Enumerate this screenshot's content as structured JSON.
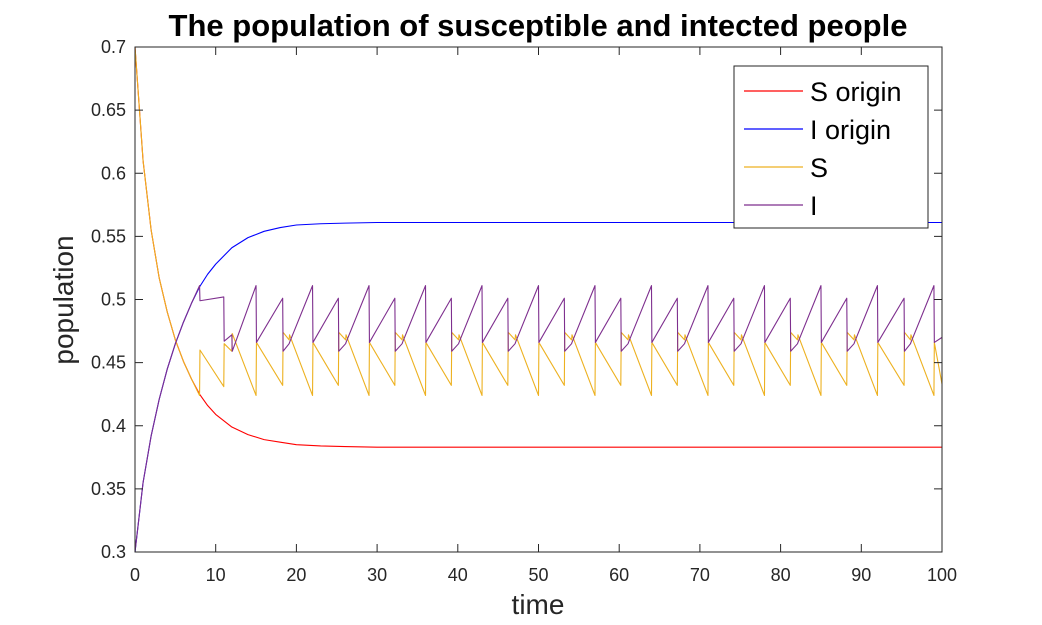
{
  "chart_data": {
    "type": "line",
    "title": "The population of susceptible and intected people",
    "xlabel": "time",
    "ylabel": "population",
    "xlim": [
      0,
      100
    ],
    "ylim": [
      0.3,
      0.7
    ],
    "xticks": [
      0,
      10,
      20,
      30,
      40,
      50,
      60,
      70,
      80,
      90,
      100
    ],
    "xtick_labels": [
      "0",
      "10",
      "20",
      "30",
      "40",
      "50",
      "60",
      "70",
      "80",
      "90",
      "100"
    ],
    "yticks": [
      0.3,
      0.35,
      0.4,
      0.45,
      0.5,
      0.55,
      0.6,
      0.65,
      0.7
    ],
    "ytick_labels": [
      "0.3",
      "0.35",
      "0.4",
      "0.45",
      "0.5",
      "0.55",
      "0.6",
      "0.65",
      "0.7"
    ],
    "grid": false,
    "legend_position": "top-right",
    "series": [
      {
        "name": "S origin",
        "color": "#ff0000",
        "x": [
          0,
          1,
          2,
          3,
          4,
          5,
          6,
          7,
          8,
          9,
          10,
          12,
          14,
          16,
          18,
          20,
          23,
          26,
          30,
          40,
          60,
          100
        ],
        "y": [
          0.7,
          0.61,
          0.555,
          0.517,
          0.49,
          0.468,
          0.451,
          0.437,
          0.425,
          0.416,
          0.409,
          0.399,
          0.393,
          0.389,
          0.387,
          0.385,
          0.384,
          0.3835,
          0.383,
          0.383,
          0.383,
          0.383
        ]
      },
      {
        "name": "I origin",
        "color": "#0000ff",
        "x": [
          0,
          1,
          2,
          3,
          4,
          5,
          6,
          7,
          8,
          9,
          10,
          12,
          14,
          16,
          18,
          20,
          23,
          26,
          30,
          40,
          60,
          100
        ],
        "y": [
          0.3,
          0.355,
          0.392,
          0.421,
          0.445,
          0.465,
          0.482,
          0.497,
          0.51,
          0.52,
          0.528,
          0.541,
          0.549,
          0.554,
          0.557,
          0.559,
          0.56,
          0.5605,
          0.561,
          0.561,
          0.561,
          0.561
        ]
      },
      {
        "name": "S",
        "color": "#edb120",
        "x": [
          0,
          1,
          2,
          3,
          4,
          5,
          6,
          7,
          8,
          8.05,
          11,
          11.05,
          12,
          12.05,
          15,
          15.05,
          18.3,
          18.35,
          19.1,
          19.15,
          22,
          22.05,
          25.2,
          25.25,
          26.1,
          26.15,
          29,
          29.05,
          32.2,
          32.25,
          33.1,
          33.15,
          36,
          36.05,
          39.2,
          39.25,
          40.1,
          40.15,
          43,
          43.05,
          46.2,
          46.25,
          47.1,
          47.15,
          50,
          50.05,
          53.2,
          53.25,
          54.1,
          54.15,
          57,
          57.05,
          60.2,
          60.25,
          61.1,
          61.15,
          64,
          64.05,
          67.2,
          67.25,
          68.1,
          68.15,
          71,
          71.05,
          74.2,
          74.25,
          75.1,
          75.15,
          78,
          78.05,
          81.2,
          81.25,
          82.1,
          82.15,
          85,
          85.05,
          88.2,
          88.25,
          89.1,
          89.15,
          92,
          92.05,
          95.3,
          95.35,
          96.1,
          96.15,
          99,
          99.05,
          100
        ],
        "y": [
          0.7,
          0.61,
          0.555,
          0.517,
          0.49,
          0.468,
          0.451,
          0.437,
          0.424,
          0.46,
          0.431,
          0.465,
          0.459,
          0.473,
          0.424,
          0.466,
          0.432,
          0.474,
          0.468,
          0.472,
          0.424,
          0.466,
          0.432,
          0.474,
          0.468,
          0.472,
          0.424,
          0.466,
          0.432,
          0.474,
          0.468,
          0.472,
          0.424,
          0.466,
          0.432,
          0.474,
          0.468,
          0.472,
          0.424,
          0.466,
          0.432,
          0.474,
          0.468,
          0.472,
          0.424,
          0.466,
          0.432,
          0.474,
          0.468,
          0.472,
          0.424,
          0.466,
          0.432,
          0.474,
          0.468,
          0.472,
          0.424,
          0.466,
          0.432,
          0.474,
          0.468,
          0.472,
          0.424,
          0.466,
          0.432,
          0.474,
          0.468,
          0.472,
          0.424,
          0.466,
          0.432,
          0.474,
          0.468,
          0.472,
          0.424,
          0.466,
          0.432,
          0.474,
          0.468,
          0.472,
          0.424,
          0.466,
          0.432,
          0.474,
          0.468,
          0.472,
          0.424,
          0.466,
          0.433
        ]
      },
      {
        "name": "I",
        "color": "#7e2f8e",
        "x": [
          0,
          1,
          2,
          3,
          4,
          5,
          6,
          7,
          8,
          8.05,
          11,
          11.05,
          12,
          12.05,
          15,
          15.05,
          18.3,
          18.35,
          19.1,
          19.15,
          22,
          22.05,
          25.2,
          25.25,
          26.1,
          26.15,
          29,
          29.05,
          32.2,
          32.25,
          33.1,
          33.15,
          36,
          36.05,
          39.2,
          39.25,
          40.1,
          40.15,
          43,
          43.05,
          46.2,
          46.25,
          47.1,
          47.15,
          50,
          50.05,
          53.2,
          53.25,
          54.1,
          54.15,
          57,
          57.05,
          60.2,
          60.25,
          61.1,
          61.15,
          64,
          64.05,
          67.2,
          67.25,
          68.1,
          68.15,
          71,
          71.05,
          74.2,
          74.25,
          75.1,
          75.15,
          78,
          78.05,
          81.2,
          81.25,
          82.1,
          82.15,
          85,
          85.05,
          88.2,
          88.25,
          89.1,
          89.15,
          92,
          92.05,
          95.3,
          95.35,
          96.1,
          96.15,
          99,
          99.05,
          100
        ],
        "y": [
          0.3,
          0.355,
          0.392,
          0.421,
          0.445,
          0.465,
          0.482,
          0.497,
          0.511,
          0.499,
          0.502,
          0.467,
          0.472,
          0.459,
          0.511,
          0.466,
          0.501,
          0.459,
          0.465,
          0.466,
          0.511,
          0.466,
          0.501,
          0.459,
          0.465,
          0.466,
          0.511,
          0.466,
          0.501,
          0.459,
          0.465,
          0.466,
          0.511,
          0.466,
          0.501,
          0.459,
          0.465,
          0.466,
          0.511,
          0.466,
          0.501,
          0.459,
          0.465,
          0.466,
          0.511,
          0.466,
          0.501,
          0.459,
          0.465,
          0.466,
          0.511,
          0.466,
          0.501,
          0.459,
          0.465,
          0.466,
          0.511,
          0.466,
          0.501,
          0.459,
          0.465,
          0.466,
          0.511,
          0.466,
          0.501,
          0.459,
          0.465,
          0.466,
          0.511,
          0.466,
          0.501,
          0.459,
          0.465,
          0.466,
          0.511,
          0.466,
          0.501,
          0.459,
          0.465,
          0.466,
          0.511,
          0.466,
          0.501,
          0.459,
          0.465,
          0.466,
          0.511,
          0.466,
          0.47
        ]
      }
    ]
  }
}
